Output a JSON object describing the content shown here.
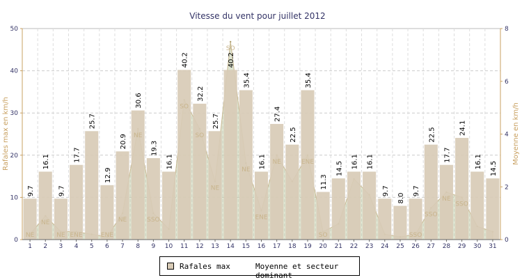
{
  "chart_data": {
    "type": "bar",
    "title": "Vitesse du vent pour juillet 2012",
    "ylabel": "Rafales max en km/h",
    "y2label": "Moyenne en km/h",
    "ylim": [
      0,
      50
    ],
    "y2lim": [
      0,
      8
    ],
    "yticks": [
      0,
      10,
      20,
      30,
      40,
      50
    ],
    "y2ticks": [
      0,
      2,
      4,
      6,
      8
    ],
    "grid": true,
    "legend_position": "bottom",
    "categories": [
      "1",
      "2",
      "3",
      "4",
      "5",
      "6",
      "7",
      "8",
      "9",
      "10",
      "11",
      "12",
      "13",
      "14",
      "15",
      "16",
      "17",
      "18",
      "19",
      "20",
      "21",
      "22",
      "23",
      "24",
      "25",
      "26",
      "27",
      "28",
      "29",
      "30",
      "31"
    ],
    "series": [
      {
        "name": "Rafales max",
        "type": "bar",
        "color": "#d8cbb6",
        "values": [
          9.7,
          16.1,
          9.7,
          17.7,
          25.7,
          12.9,
          20.9,
          30.6,
          19.3,
          16.1,
          40.2,
          32.2,
          25.7,
          40.2,
          35.4,
          16.1,
          27.4,
          22.5,
          35.4,
          11.3,
          14.5,
          16.1,
          16.1,
          9.7,
          8.0,
          9.7,
          22.5,
          17.7,
          24.1,
          16.1,
          14.5
        ],
        "labels": [
          "9.7",
          "16.1",
          "9.7",
          "17.7",
          "25.7",
          "12.9",
          "20.9",
          "30.6",
          "19.3",
          "16.1",
          "40.2",
          "32.2",
          "25.7",
          "40.2",
          "35.4",
          "16.1",
          "27.4",
          "22.5",
          "35.4",
          "11.3",
          "14.5",
          "16.1",
          "16.1",
          "9.7",
          "8.0",
          "9.7",
          "22.5",
          "17.7",
          "24.1",
          "16.1",
          "14.5"
        ]
      },
      {
        "name": "Moyenne et secteur dominant",
        "type": "area",
        "axis": "right",
        "color": "#b9c49a",
        "values": [
          0.2,
          0.9,
          0.3,
          0.3,
          0.2,
          0.1,
          1.0,
          4.2,
          1.0,
          0.4,
          5.3,
          4.2,
          2.2,
          7.5,
          2.9,
          1.1,
          3.2,
          2.2,
          3.2,
          0.3,
          0.6,
          2.3,
          1.7,
          0.2,
          0.1,
          0.2,
          1.2,
          1.8,
          1.6,
          0.5,
          0.3
        ],
        "sectors": [
          "NE",
          "NE",
          "NE",
          "ENE",
          "",
          "ENE",
          "NE",
          "NE",
          "SSO",
          "",
          "SO",
          "SO",
          "NE",
          "SO",
          "NE",
          "ENE",
          "NE",
          "",
          "ENE",
          "SO",
          "",
          "",
          "",
          "",
          "",
          "SSO",
          "SSO",
          "NE",
          "SSO",
          "",
          ""
        ]
      }
    ]
  }
}
